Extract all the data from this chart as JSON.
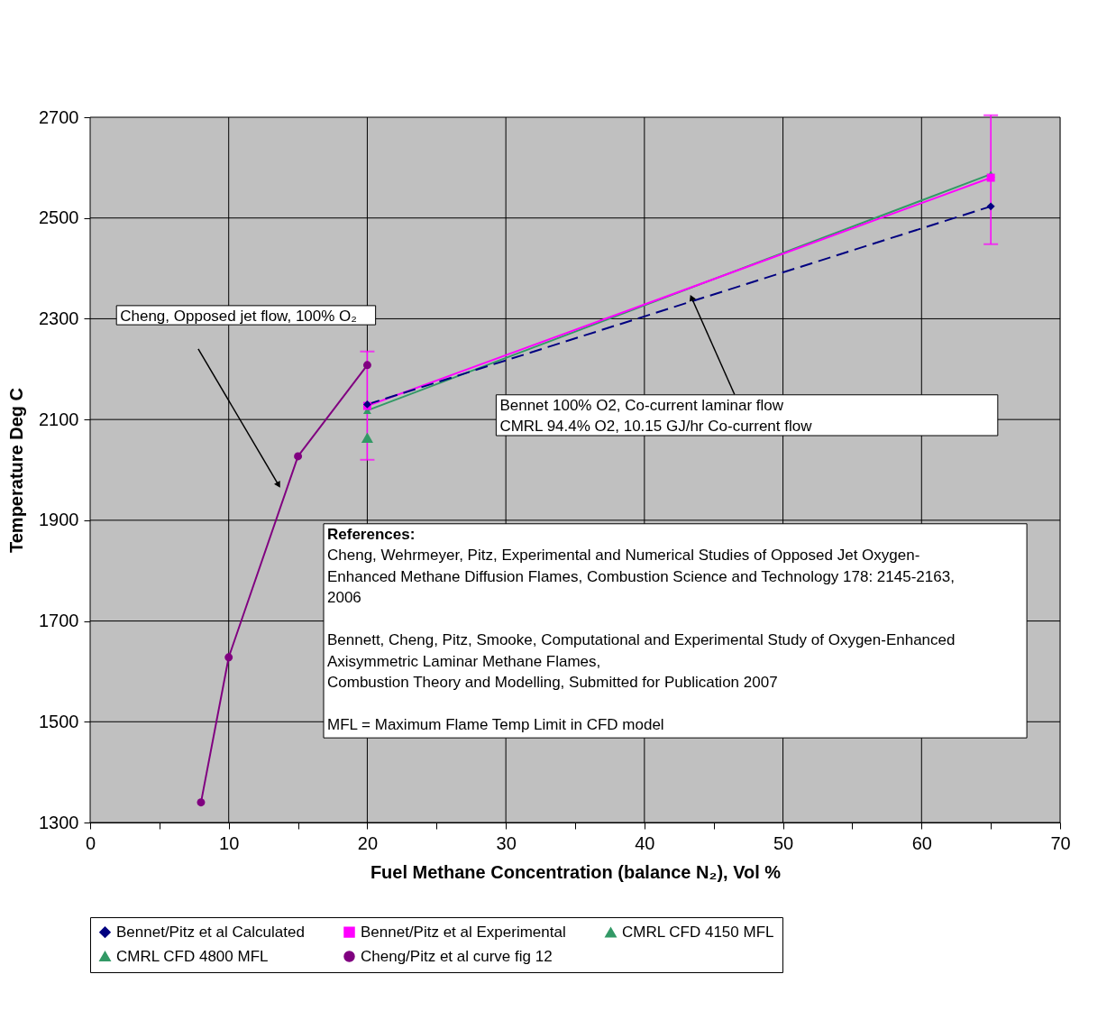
{
  "chart_data": {
    "type": "line",
    "xlabel": "Fuel Methane Concentration (balance N₂), Vol %",
    "ylabel": "Temperature Deg C",
    "xlim": [
      0,
      70
    ],
    "xticks": [
      0,
      {
        "value": 5,
        "label": null
      },
      10,
      {
        "value": 15,
        "label": null
      },
      20,
      {
        "value": 25,
        "label": null
      },
      30,
      {
        "value": 35,
        "label": null
      },
      40,
      {
        "value": 45,
        "label": null
      },
      50,
      {
        "value": 55,
        "label": null
      },
      60,
      {
        "value": 65,
        "label": null
      },
      70
    ],
    "ylim": [
      1300,
      2700
    ],
    "yticks": [
      1300,
      1500,
      1700,
      1900,
      2100,
      2300,
      2500,
      2700
    ],
    "grid": true,
    "legend": "bottom",
    "series": [
      {
        "name": "Bennet/Pitz et al Calculated",
        "color": "#000080",
        "marker": "diamond",
        "line_style": "dashed",
        "x": [
          20,
          65
        ],
        "values": [
          2130,
          2523
        ]
      },
      {
        "name": "Bennet/Pitz et al Experimental",
        "color": "#ff00ff",
        "marker": "square",
        "line_style": "solid",
        "x": [
          20,
          65
        ],
        "values": [
          2127,
          2580
        ],
        "errors": [
          [
            2020,
            2235
          ],
          [
            2448,
            2704
          ]
        ]
      },
      {
        "name": "CMRL CFD 4150 MFL",
        "type": "scatter",
        "color": "#339966",
        "marker": "triangle",
        "x": [
          20
        ],
        "values": [
          2064
        ]
      },
      {
        "name": "CMRL CFD 4800 MFL",
        "color": "#339966",
        "marker": "triangle",
        "line_style": "solid",
        "x": [
          20,
          65
        ],
        "values": [
          2118,
          2587
        ]
      },
      {
        "name": "Cheng/Pitz et al curve fig 12",
        "color": "#800080",
        "marker": "circle",
        "line_style": "solid",
        "x": [
          8,
          10,
          15,
          20
        ],
        "values": [
          1340,
          1628,
          2027,
          2208
        ]
      }
    ],
    "annotations": [
      "Cheng, Opposed jet flow, 100% O₂",
      "Bennet 100% O2, Co-current laminar flow\nCMRL 94.4% O2, 10.15 GJ/hr Co-current flow",
      "References:\nCheng, Wehrmeyer, Pitz, Experimental and Numerical Studies of Opposed Jet Oxygen-\nEnhanced Methane Diffusion Flames, Combustion Science and Technology 178: 2145-2163,\n2006\n\nBennett, Cheng, Pitz, Smooke, Computational and Experimental Study of Oxygen-Enhanced\nAxisymmetric Laminar Methane Flames,\nCombustion Theory and Modelling,  Submitted for Publication 2007\n\nMFL = Maximum Flame Temp Limit in CFD model"
    ]
  }
}
